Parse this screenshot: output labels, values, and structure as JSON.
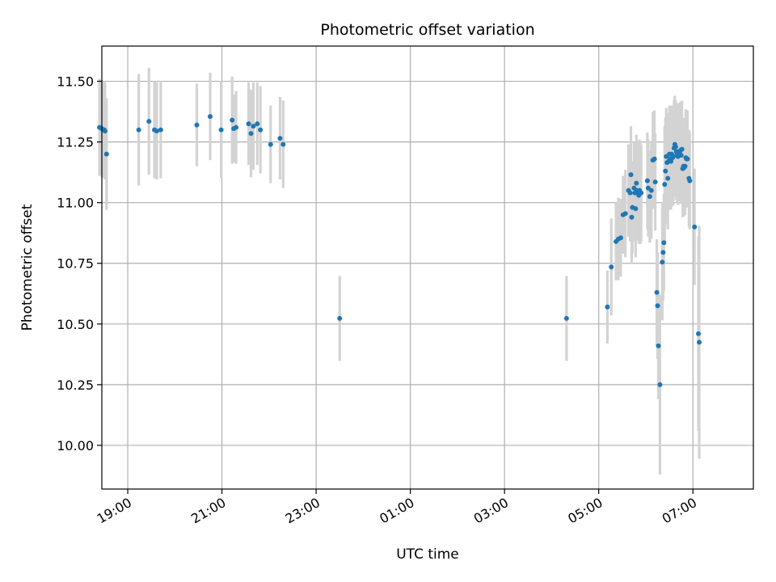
{
  "chart_data": {
    "type": "scatter",
    "title": "Photometric offset variation",
    "xlabel": "UTC time",
    "ylabel": "Photometric offset",
    "x_is_time": true,
    "xlim": [
      "18:27",
      "08:17"
    ],
    "ylim": [
      9.82,
      11.645
    ],
    "x_ticks": [
      "19:00",
      "21:00",
      "23:00",
      "01:00",
      "03:00",
      "05:00",
      "07:00"
    ],
    "y_ticks": [
      10.0,
      10.25,
      10.5,
      10.75,
      11.0,
      11.25,
      11.5
    ],
    "y_tick_labels": [
      "10.00",
      "10.25",
      "10.50",
      "10.75",
      "11.00",
      "11.25",
      "11.50"
    ],
    "grid": true,
    "colors": {
      "point": "#1f77b4",
      "errorbar": "#d3d3d3",
      "grid": "#b0b0b0",
      "axes": "#000000"
    },
    "series": [
      {
        "points": [
          {
            "t": "18:24",
            "y": 11.31,
            "err": 0.2
          },
          {
            "t": "18:27",
            "y": 11.305,
            "err": 0.2
          },
          {
            "t": "18:30",
            "y": 11.3,
            "err": 0.2
          },
          {
            "t": "18:31",
            "y": 11.295,
            "err": 0.2
          },
          {
            "t": "18:33",
            "y": 11.2,
            "err": 0.23
          },
          {
            "t": "19:14",
            "y": 11.3,
            "err": 0.23
          },
          {
            "t": "19:27",
            "y": 11.335,
            "err": 0.22
          },
          {
            "t": "19:34",
            "y": 11.3,
            "err": 0.2
          },
          {
            "t": "19:37",
            "y": 11.295,
            "err": 0.2
          },
          {
            "t": "19:42",
            "y": 11.3,
            "err": 0.2
          },
          {
            "t": "20:28",
            "y": 11.32,
            "err": 0.17
          },
          {
            "t": "20:45",
            "y": 11.355,
            "err": 0.18
          },
          {
            "t": "20:59",
            "y": 11.3,
            "err": 0.2
          },
          {
            "t": "21:13",
            "y": 11.34,
            "err": 0.18
          },
          {
            "t": "21:15",
            "y": 11.305,
            "err": 0.14
          },
          {
            "t": "21:18",
            "y": 11.31,
            "err": 0.15
          },
          {
            "t": "21:34",
            "y": 11.325,
            "err": 0.17
          },
          {
            "t": "21:37",
            "y": 11.285,
            "err": 0.18
          },
          {
            "t": "21:40",
            "y": 11.315,
            "err": 0.18
          },
          {
            "t": "21:45",
            "y": 11.325,
            "err": 0.17
          },
          {
            "t": "21:49",
            "y": 11.3,
            "err": 0.18
          },
          {
            "t": "22:02",
            "y": 11.24,
            "err": 0.16
          },
          {
            "t": "22:14",
            "y": 11.265,
            "err": 0.17
          },
          {
            "t": "22:18",
            "y": 11.24,
            "err": 0.18
          },
          {
            "t": "23:30",
            "y": 10.523,
            "err": 0.175
          },
          {
            "t": "04:19",
            "y": 10.523,
            "err": 0.175
          },
          {
            "t": "05:11",
            "y": 10.57,
            "err": 0.15
          },
          {
            "t": "05:16",
            "y": 10.735,
            "err": 0.2
          },
          {
            "t": "05:22",
            "y": 10.84,
            "err": 0.16
          },
          {
            "t": "05:25",
            "y": 10.85,
            "err": 0.17
          },
          {
            "t": "05:28",
            "y": 10.855,
            "err": 0.16
          },
          {
            "t": "05:31",
            "y": 10.95,
            "err": 0.16
          },
          {
            "t": "05:34",
            "y": 10.955,
            "err": 0.18
          },
          {
            "t": "05:38",
            "y": 11.05,
            "err": 0.19
          },
          {
            "t": "05:40",
            "y": 11.04,
            "err": 0.2
          },
          {
            "t": "05:41",
            "y": 11.115,
            "err": 0.2
          },
          {
            "t": "05:42",
            "y": 10.94,
            "err": 0.19
          },
          {
            "t": "05:43",
            "y": 10.98,
            "err": 0.19
          },
          {
            "t": "05:45",
            "y": 11.06,
            "err": 0.19
          },
          {
            "t": "05:46",
            "y": 11.04,
            "err": 0.2
          },
          {
            "t": "05:47",
            "y": 10.975,
            "err": 0.2
          },
          {
            "t": "05:48",
            "y": 11.08,
            "err": 0.2
          },
          {
            "t": "05:49",
            "y": 11.05,
            "err": 0.2
          },
          {
            "t": "05:50",
            "y": 11.045,
            "err": 0.2
          },
          {
            "t": "05:51",
            "y": 11.03,
            "err": 0.2
          },
          {
            "t": "05:52",
            "y": 11.05,
            "err": 0.21
          },
          {
            "t": "05:53",
            "y": 11.04,
            "err": 0.21
          },
          {
            "t": "05:54",
            "y": 11.04,
            "err": 0.2
          },
          {
            "t": "06:02",
            "y": 11.09,
            "err": 0.2
          },
          {
            "t": "06:03",
            "y": 11.06,
            "err": 0.2
          },
          {
            "t": "06:05",
            "y": 11.025,
            "err": 0.19
          },
          {
            "t": "06:07",
            "y": 11.05,
            "err": 0.2
          },
          {
            "t": "06:09",
            "y": 11.175,
            "err": 0.2
          },
          {
            "t": "06:11",
            "y": 11.18,
            "err": 0.2
          },
          {
            "t": "06:12",
            "y": 11.085,
            "err": 0.2
          },
          {
            "t": "06:14",
            "y": 10.63,
            "err": 0.22
          },
          {
            "t": "06:15",
            "y": 10.575,
            "err": 0.22
          },
          {
            "t": "06:16",
            "y": 10.41,
            "err": 0.22
          },
          {
            "t": "06:18",
            "y": 10.25,
            "err": 0.37
          },
          {
            "t": "06:21",
            "y": 10.755,
            "err": 0.24
          },
          {
            "t": "06:22",
            "y": 10.795,
            "err": 0.2
          },
          {
            "t": "06:23",
            "y": 10.835,
            "err": 0.2
          },
          {
            "t": "06:24",
            "y": 11.075,
            "err": 0.24
          },
          {
            "t": "06:25",
            "y": 11.13,
            "err": 0.22
          },
          {
            "t": "06:26",
            "y": 11.19,
            "err": 0.2
          },
          {
            "t": "06:27",
            "y": 11.165,
            "err": 0.2
          },
          {
            "t": "06:28",
            "y": 11.1,
            "err": 0.21
          },
          {
            "t": "06:29",
            "y": 11.17,
            "err": 0.2
          },
          {
            "t": "06:30",
            "y": 11.2,
            "err": 0.2
          },
          {
            "t": "06:31",
            "y": 11.18,
            "err": 0.2
          },
          {
            "t": "06:32",
            "y": 11.17,
            "err": 0.2
          },
          {
            "t": "06:33",
            "y": 11.2,
            "err": 0.2
          },
          {
            "t": "06:34",
            "y": 11.185,
            "err": 0.2
          },
          {
            "t": "06:35",
            "y": 11.19,
            "err": 0.2
          },
          {
            "t": "06:36",
            "y": 11.225,
            "err": 0.2
          },
          {
            "t": "06:37",
            "y": 11.24,
            "err": 0.2
          },
          {
            "t": "06:38",
            "y": 11.23,
            "err": 0.19
          },
          {
            "t": "06:39",
            "y": 11.21,
            "err": 0.2
          },
          {
            "t": "06:40",
            "y": 11.2,
            "err": 0.2
          },
          {
            "t": "06:41",
            "y": 11.19,
            "err": 0.2
          },
          {
            "t": "06:42",
            "y": 11.21,
            "err": 0.2
          },
          {
            "t": "06:43",
            "y": 11.205,
            "err": 0.2
          },
          {
            "t": "06:44",
            "y": 11.215,
            "err": 0.2
          },
          {
            "t": "06:45",
            "y": 11.195,
            "err": 0.2
          },
          {
            "t": "06:46",
            "y": 11.22,
            "err": 0.2
          },
          {
            "t": "06:47",
            "y": 11.14,
            "err": 0.2
          },
          {
            "t": "06:48",
            "y": 11.15,
            "err": 0.2
          },
          {
            "t": "06:49",
            "y": 11.145,
            "err": 0.2
          },
          {
            "t": "06:50",
            "y": 11.15,
            "err": 0.2
          },
          {
            "t": "06:51",
            "y": 11.185,
            "err": 0.2
          },
          {
            "t": "06:52",
            "y": 11.18,
            "err": 0.2
          },
          {
            "t": "06:53",
            "y": 11.18,
            "err": 0.2
          },
          {
            "t": "06:55",
            "y": 11.1,
            "err": 0.2
          },
          {
            "t": "06:56",
            "y": 11.09,
            "err": 0.2
          },
          {
            "t": "07:02",
            "y": 10.9,
            "err": 0.24
          },
          {
            "t": "07:07",
            "y": 10.46,
            "err": 0.4
          },
          {
            "t": "07:08",
            "y": 10.425,
            "err": 0.48
          }
        ]
      }
    ]
  }
}
